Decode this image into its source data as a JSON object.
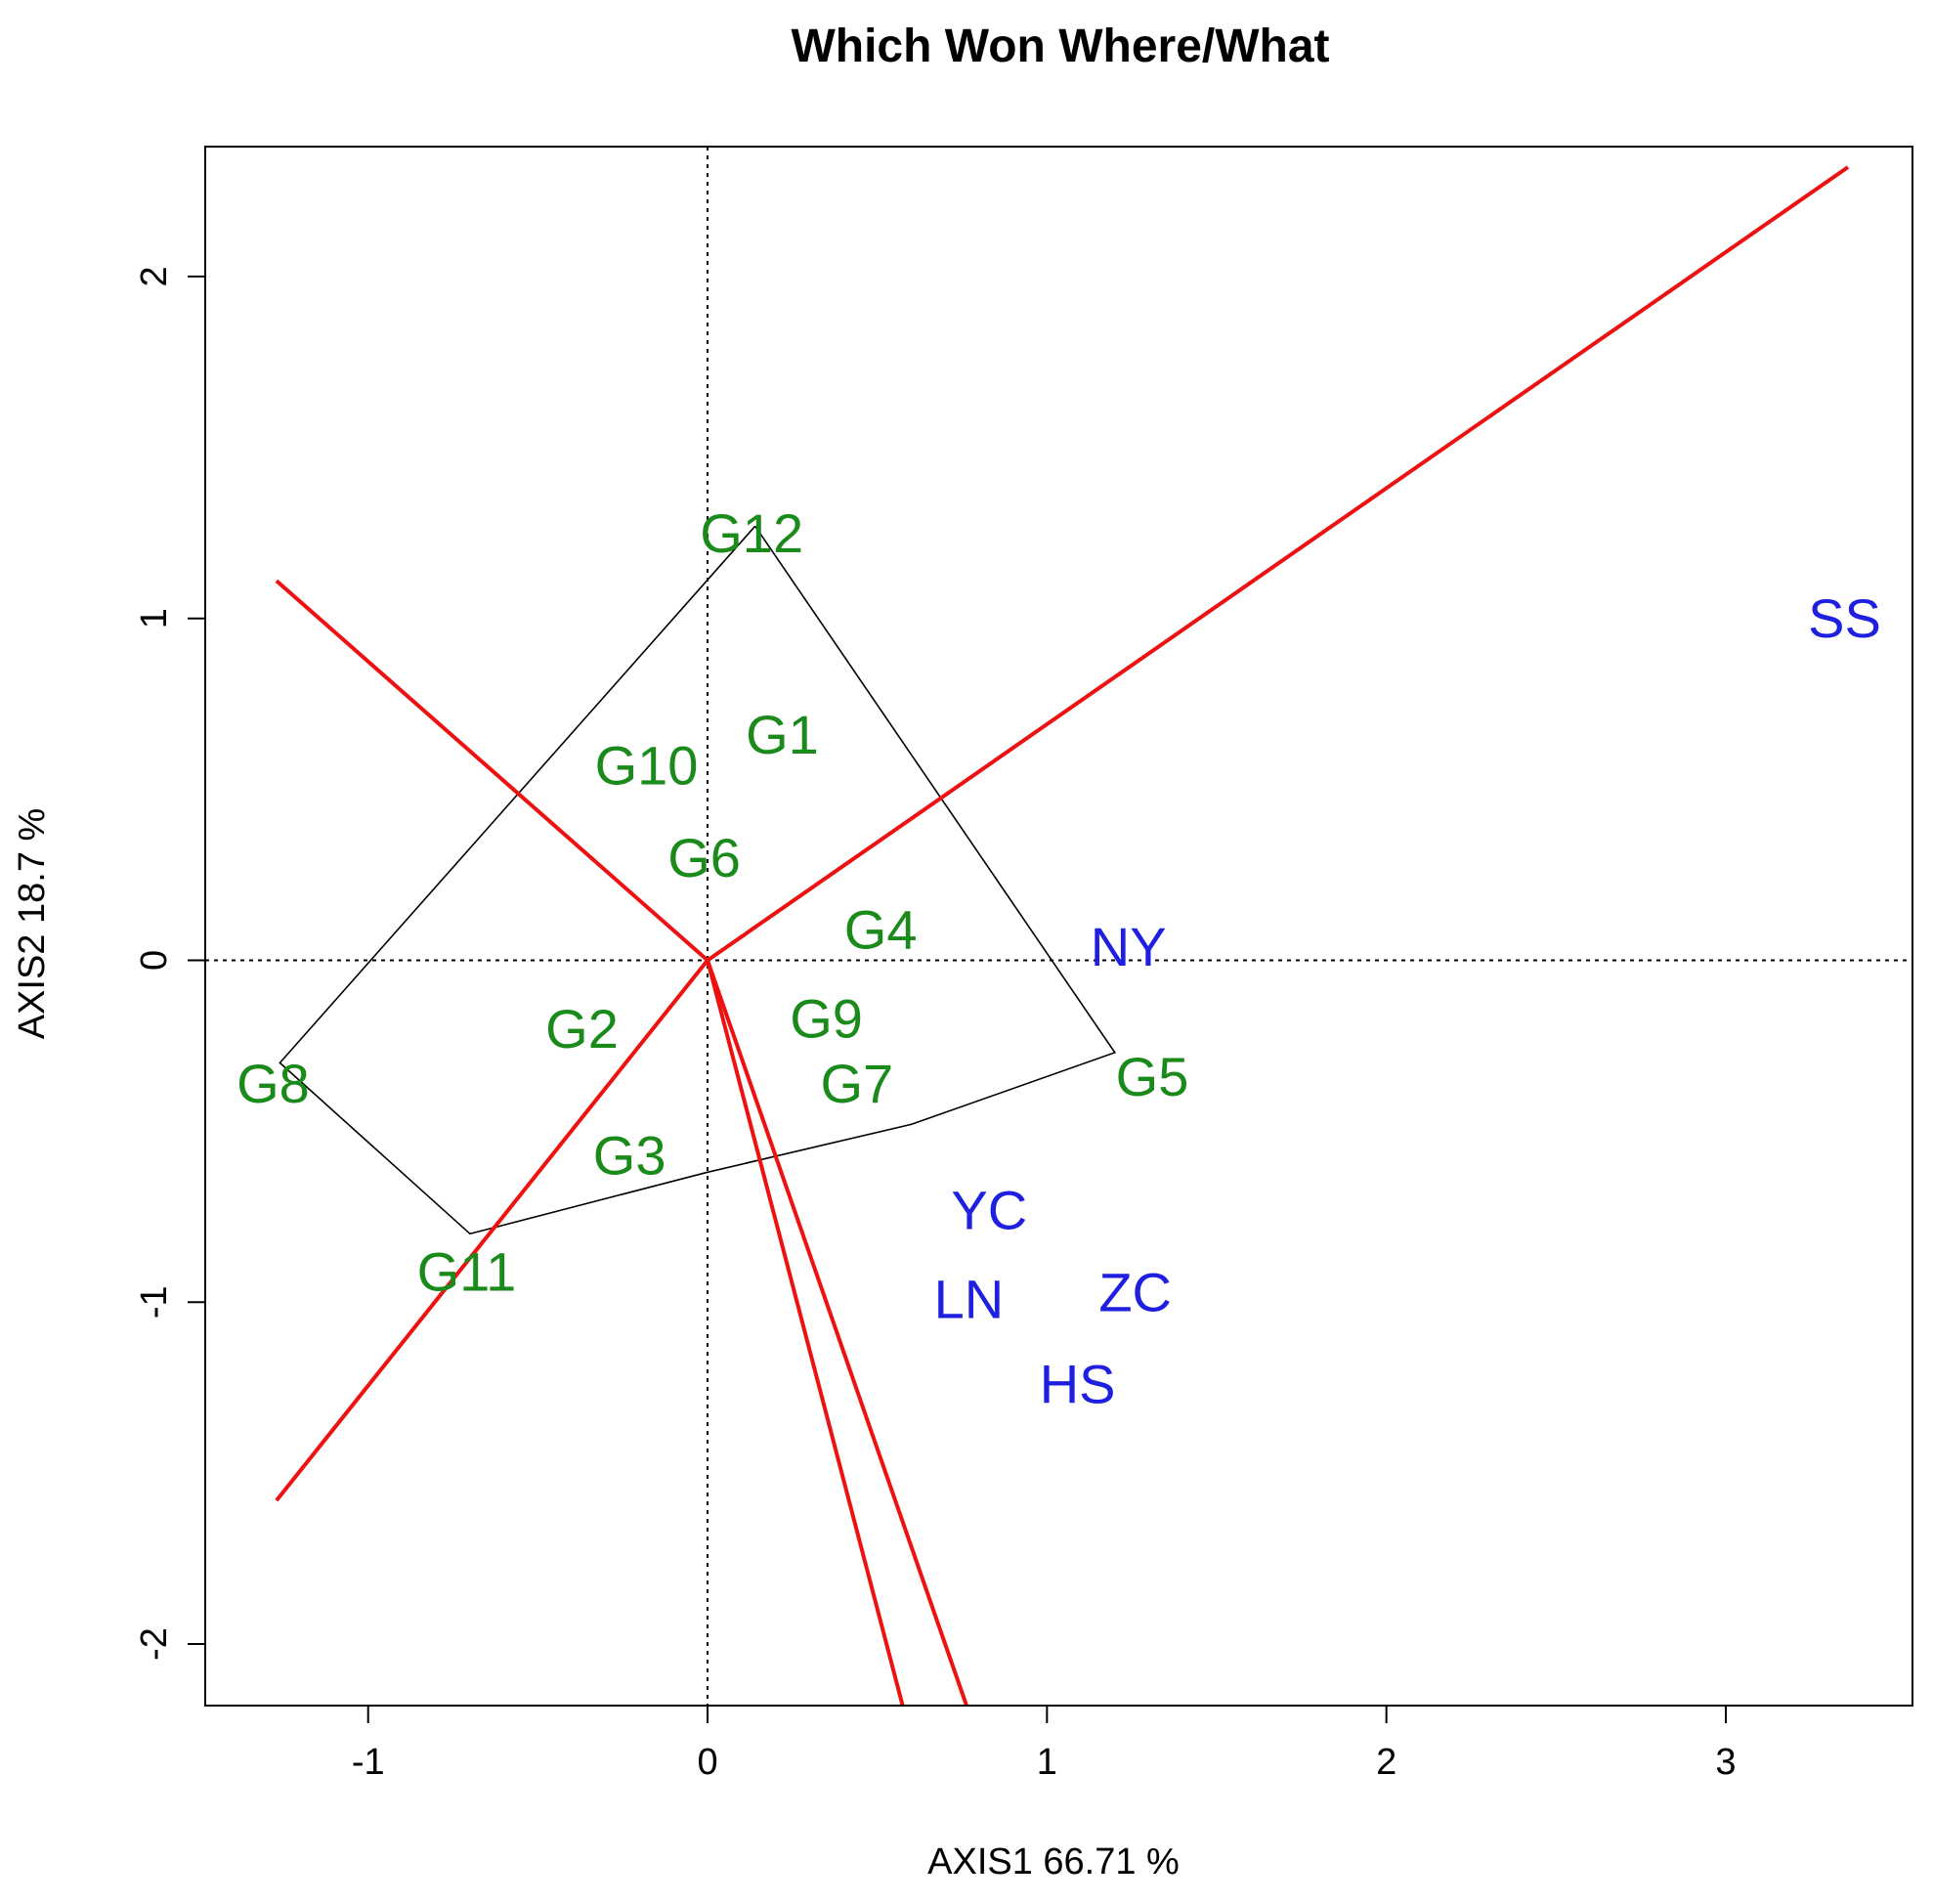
{
  "chart_data": {
    "type": "scatter",
    "title": "Which Won Where/What",
    "xlabel": "AXIS1 66.71 %",
    "ylabel": "AXIS2 18.7 %",
    "xlim": [
      -1.48,
      3.55
    ],
    "ylim": [
      -2.18,
      2.38
    ],
    "xticks": [
      -1,
      0,
      1,
      2,
      3
    ],
    "yticks": [
      -2,
      -1,
      0,
      1,
      2
    ],
    "colors": {
      "genotype": "#1a8a1a",
      "environment": "#1f1fe0",
      "sector_line": "#ee1111",
      "hull": "#000000",
      "reference_line": "#000000"
    },
    "reference_lines": {
      "x": 0,
      "y": 0,
      "style": "dotted"
    },
    "genotypes": [
      {
        "label": "G12",
        "x": 0.13,
        "y": 1.25
      },
      {
        "label": "G1",
        "x": 0.22,
        "y": 0.66
      },
      {
        "label": "G10",
        "x": -0.18,
        "y": 0.57
      },
      {
        "label": "G6",
        "x": -0.01,
        "y": 0.3
      },
      {
        "label": "G4",
        "x": 0.51,
        "y": 0.09
      },
      {
        "label": "G9",
        "x": 0.35,
        "y": -0.17
      },
      {
        "label": "G2",
        "x": -0.37,
        "y": -0.2
      },
      {
        "label": "G7",
        "x": 0.44,
        "y": -0.36
      },
      {
        "label": "G5",
        "x": 1.31,
        "y": -0.34
      },
      {
        "label": "G8",
        "x": -1.28,
        "y": -0.36
      },
      {
        "label": "G3",
        "x": -0.23,
        "y": -0.57
      },
      {
        "label": "G11",
        "x": -0.71,
        "y": -0.91
      }
    ],
    "environments": [
      {
        "label": "SS",
        "x": 3.35,
        "y": 1.0
      },
      {
        "label": "NY",
        "x": 1.24,
        "y": 0.04
      },
      {
        "label": "YC",
        "x": 0.83,
        "y": -0.73
      },
      {
        "label": "LN",
        "x": 0.77,
        "y": -0.99
      },
      {
        "label": "ZC",
        "x": 1.26,
        "y": -0.97
      },
      {
        "label": "HS",
        "x": 1.09,
        "y": -1.24
      }
    ],
    "polygon": [
      {
        "x": 0.14,
        "y": 1.27
      },
      {
        "x": 1.2,
        "y": -0.27
      },
      {
        "x": 0.6,
        "y": -0.48
      },
      {
        "x": 0.0,
        "y": -0.62
      },
      {
        "x": -0.7,
        "y": -0.8
      },
      {
        "x": -1.26,
        "y": -0.3
      },
      {
        "x": 0.14,
        "y": 1.27
      }
    ],
    "sector_rays": [
      {
        "x": 3.36,
        "y": 2.32
      },
      {
        "x": -1.27,
        "y": 1.11
      },
      {
        "x": -1.27,
        "y": -1.58
      },
      {
        "x": 0.58,
        "y": -2.2
      },
      {
        "x": 0.77,
        "y": -2.2
      }
    ]
  }
}
